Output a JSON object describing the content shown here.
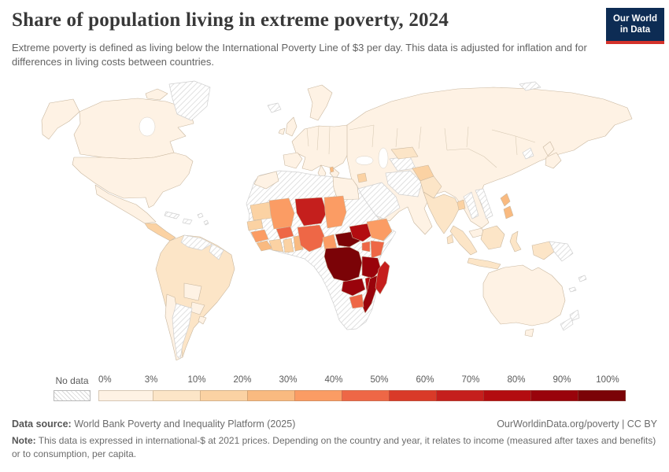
{
  "header": {
    "title": "Share of population living in extreme poverty, 2024",
    "subtitle": "Extreme poverty is defined as living below the International Poverty Line of $3 per day. This data is adjusted for inflation and for differences in living costs between countries.",
    "logo_line1": "Our World",
    "logo_line2": "in Data",
    "logo_bg": "#0d2c54",
    "logo_accent": "#d4322b"
  },
  "legend": {
    "no_data_label": "No data",
    "ticks": [
      "0%",
      "3%",
      "10%",
      "20%",
      "30%",
      "40%",
      "50%",
      "60%",
      "70%",
      "80%",
      "90%",
      "100%"
    ],
    "colors": [
      "#fef2e4",
      "#fce5c7",
      "#fbd2a3",
      "#f9ba80",
      "#fb9c64",
      "#ee6746",
      "#d93a28",
      "#c51f1d",
      "#b30c10",
      "#99030b",
      "#7b0307"
    ]
  },
  "footer": {
    "source_label": "Data source:",
    "source_text": "World Bank Poverty and Inequality Platform (2025)",
    "credit": "OurWorldinData.org/poverty | CC BY",
    "note_label": "Note:",
    "note_text": "This data is expressed in international-$ at 2021 prices. Depending on the country and year, it relates to income (measured after taxes and benefits) or to consumption, per capita."
  },
  "map": {
    "unit": "% of population living below $3 per day",
    "countries": {
      "alaska": 0,
      "canada": 0,
      "arctic-island-1": 0,
      "arctic-island-2": 0,
      "usa": 0,
      "mexico": 0,
      "central-america": 2,
      "greenland": "no_data",
      "cuba": "no_data",
      "hispaniola": "no_data",
      "caribbean-isles": "no_data",
      "south-america-base": 1,
      "venezuela": "no_data",
      "guyana": "no_data",
      "bolivia": 0,
      "paraguay": 0,
      "chile": 0,
      "argentina": "no_data",
      "uruguay": 0,
      "iceland": "no_data",
      "uk": 0,
      "ireland": 0,
      "scandinavia": 0,
      "europe": 0,
      "iberia": 0,
      "italy": 0,
      "balkans": 0,
      "albania": 3,
      "asia-base": 0,
      "svalbard": "no_data",
      "arabia": "no_data",
      "iran": "no_data",
      "turkmenistan": "no_data",
      "uzbekistan": 1,
      "afghanistan": 2,
      "pakistan": 1,
      "syria": 2,
      "india": 1,
      "bangladesh": 2,
      "sri-lanka": 1,
      "myanmar": "no_data",
      "vietnam": "no_data",
      "north-korea": "no_data",
      "japan-north": 0,
      "japan-south": 0,
      "philippines-north": 3,
      "philippines-south": 3,
      "malaysia": 0,
      "sumatra": 1,
      "java": 1,
      "borneo": 1,
      "sulawesi": 1,
      "west-papua": 1,
      "papua-new-guinea": "no_data",
      "australia": 0,
      "tasmania": 0,
      "new-zealand-north": "no_data",
      "new-zealand-south": "no_data",
      "fiji-isles": "no_data",
      "new-caledonia": "no_data",
      "africa-base": "no_data",
      "morocco": 0,
      "egypt": 0,
      "mauritania": 2,
      "senegal": 2,
      "guinea": 4,
      "sierra-leone": 3,
      "mali": 4,
      "burkina-faso": 5,
      "cote-divoire": 2,
      "ghana": 2,
      "togo-benin": 3,
      "niger": 7,
      "nigeria": 5,
      "chad": 4,
      "cameroon": 4,
      "central-african-republic": 10,
      "south-sudan": 8,
      "ethiopia": 4,
      "kenya": 5,
      "uganda": 5,
      "drc": 10,
      "tanzania": 9,
      "zambia": 9,
      "malawi": 8,
      "mozambique": 9,
      "zimbabwe": 5,
      "madagascar": 7
    }
  }
}
